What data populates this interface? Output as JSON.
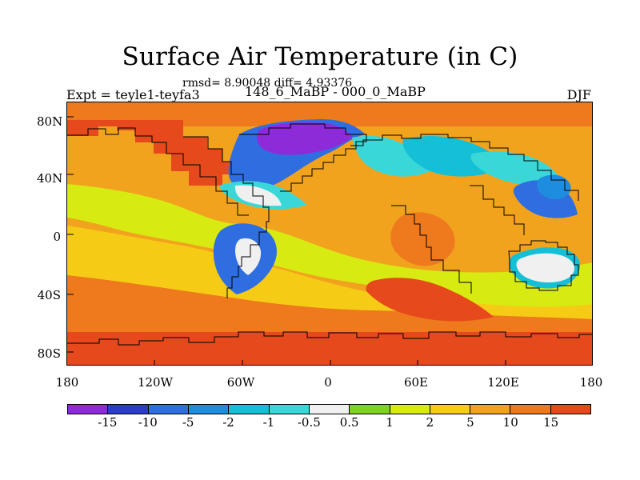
{
  "header": {
    "title": "Surface Air Temperature (in C)",
    "stats": "rmsd= 8.90048 diff= 4.93376",
    "expt": "Expt = teyle1-teyfa3",
    "experiment": "148_6_MaBP - 000_0_MaBP",
    "season": "DJF"
  },
  "axes": {
    "latitude_labels": [
      "80N",
      "40N",
      "0",
      "40S",
      "80S"
    ],
    "longitude_labels": [
      "180",
      "120W",
      "60W",
      "0",
      "60E",
      "120E",
      "180"
    ]
  },
  "colorbar": {
    "levels": [
      "-15",
      "-10",
      "-5",
      "-2",
      "-1",
      "-0.5",
      "0.5",
      "1",
      "2",
      "5",
      "10",
      "15"
    ],
    "colors": [
      "#8d2bd9",
      "#2b3cc9",
      "#2f6ee0",
      "#1e8ddf",
      "#15bfd5",
      "#39d7d7",
      "#f0f0f0",
      "#7ed321",
      "#d7ea11",
      "#f5cb16",
      "#f2a31e",
      "#ee7a1d",
      "#e6491b"
    ]
  },
  "map": {
    "variable": "Surface Air Temperature",
    "units": "C",
    "lat_range": [
      -90,
      90
    ],
    "lon_range": [
      -180,
      180
    ]
  }
}
